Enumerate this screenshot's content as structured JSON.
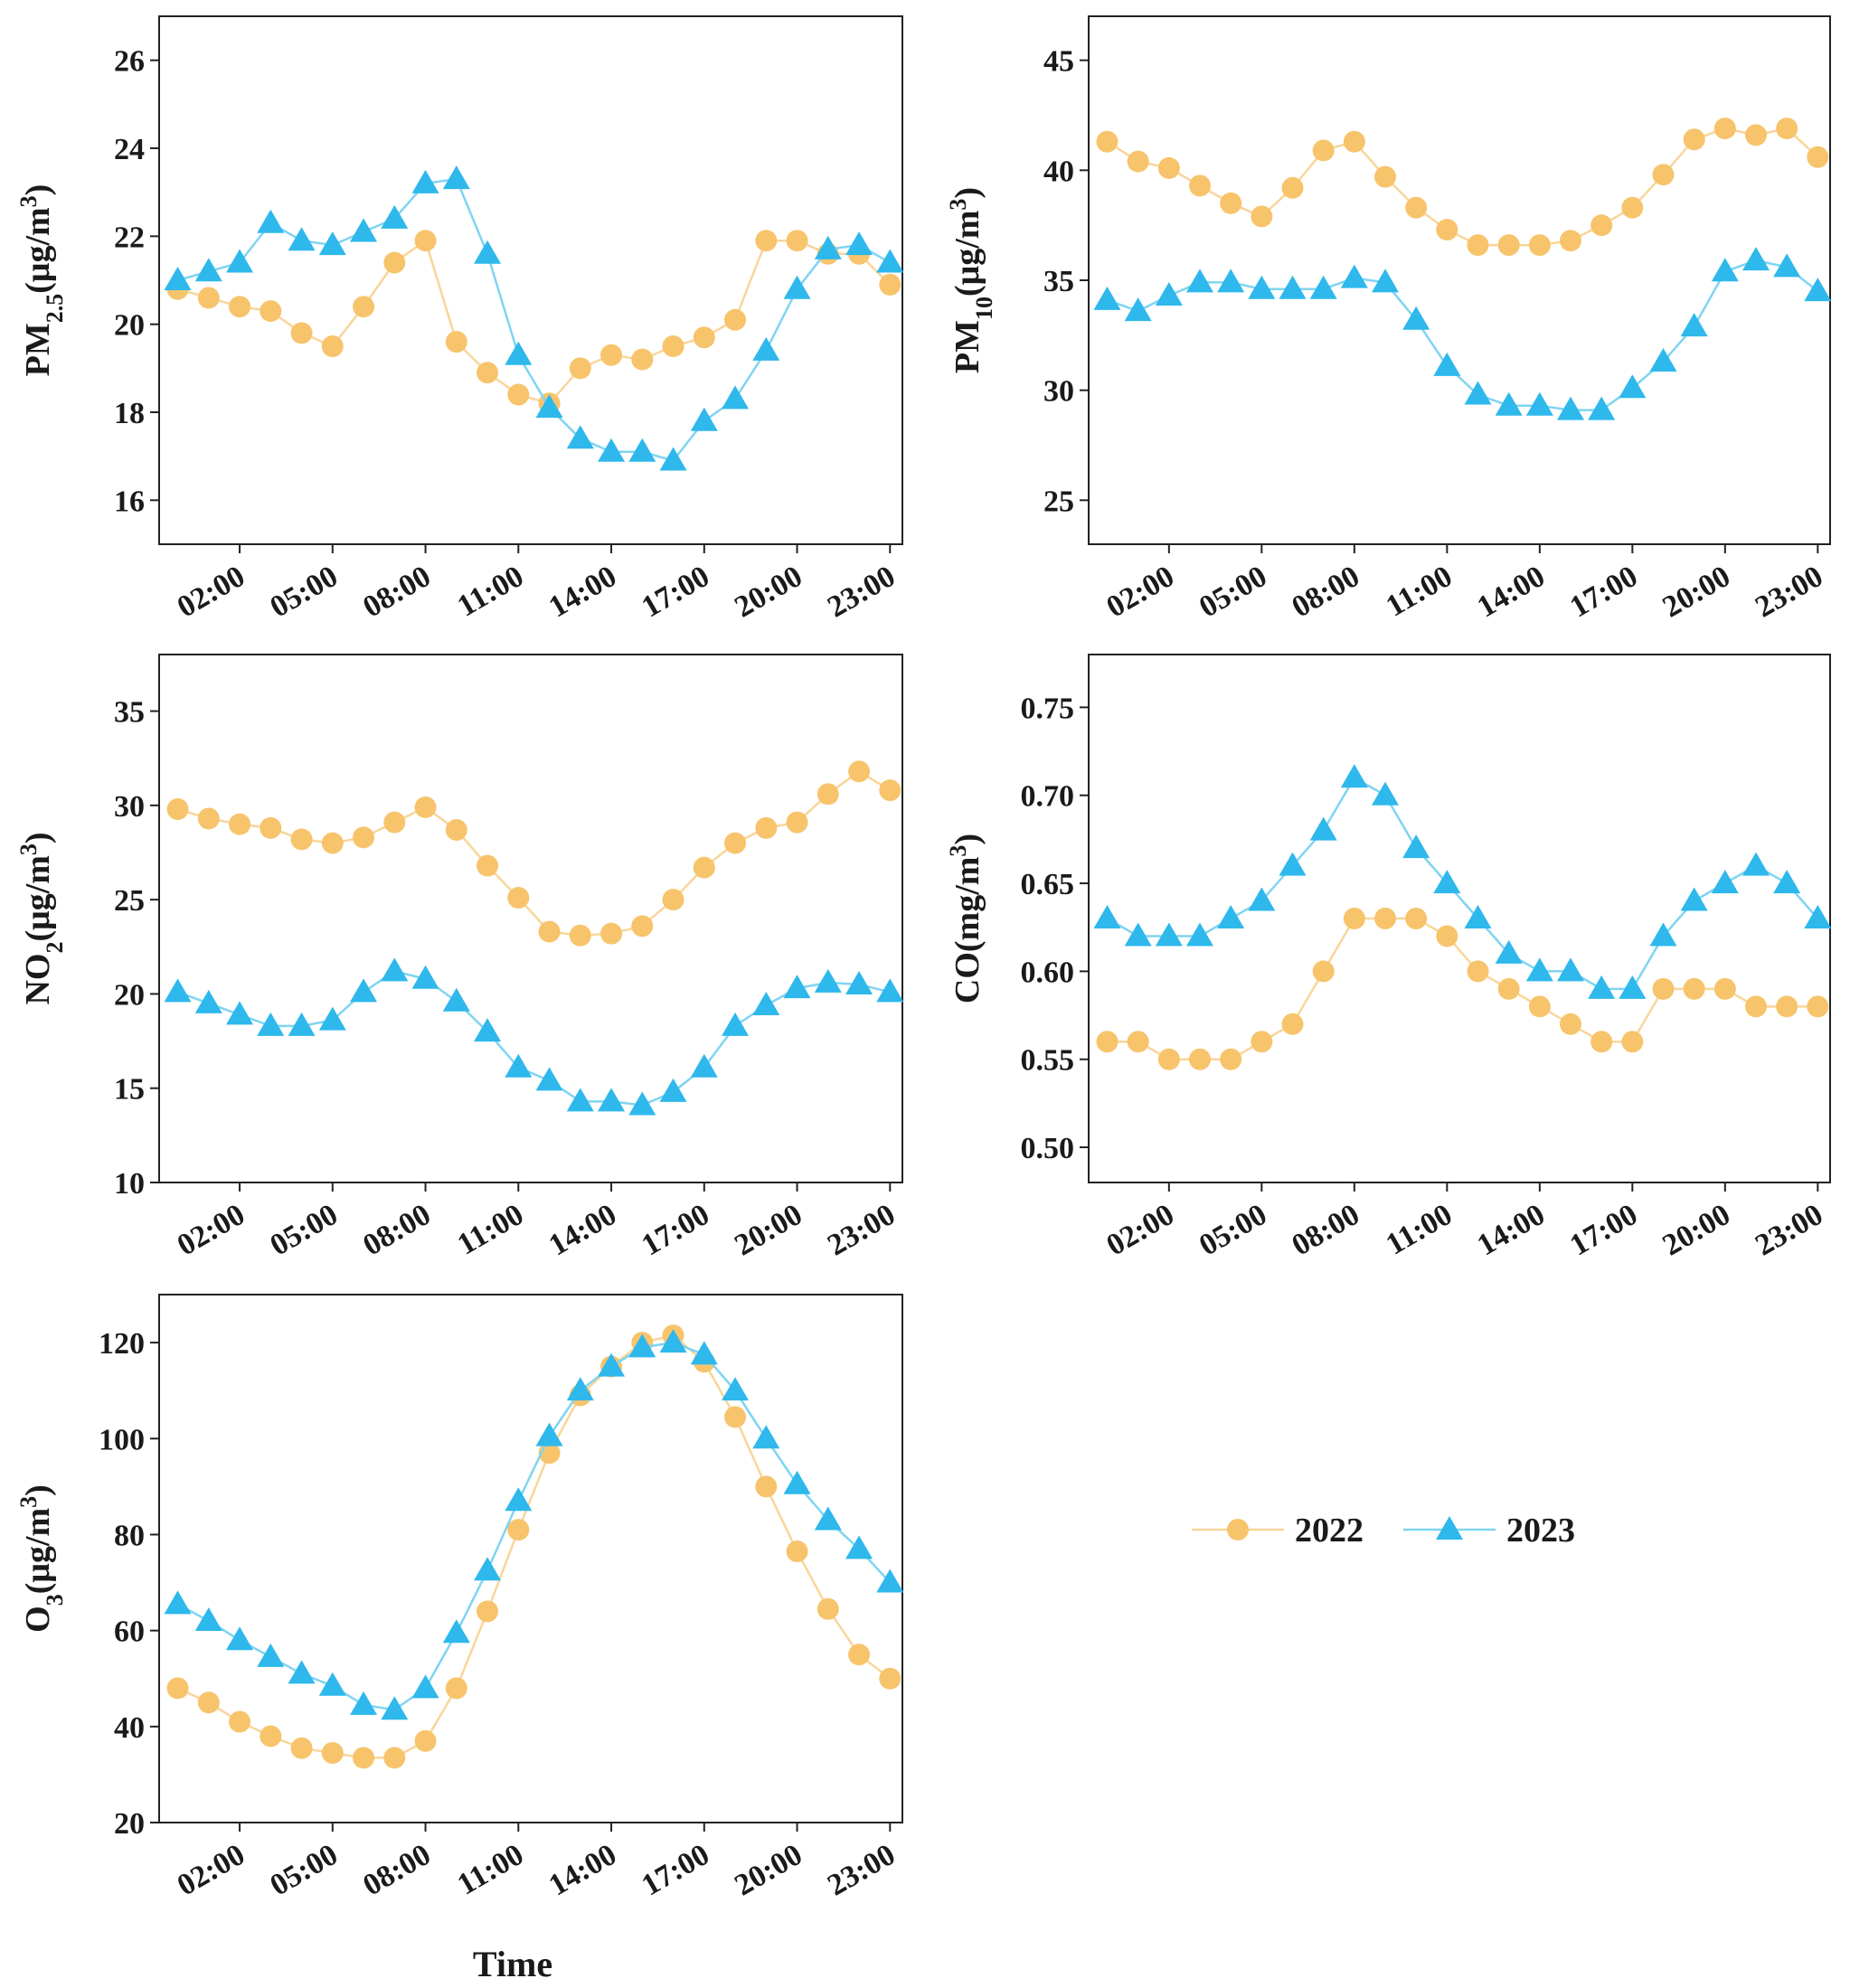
{
  "colors": {
    "s2022": "#F7C46C",
    "s2023": "#2EB8EC",
    "line2022": "#F9D59A",
    "line2023": "#7FD4F2",
    "axis": "#222222"
  },
  "legend": {
    "items": [
      {
        "label": "2022",
        "marker": "circle"
      },
      {
        "label": "2023",
        "marker": "triangle"
      }
    ]
  },
  "chart_data": [
    {
      "id": "pm25",
      "type": "line",
      "ylabel_main": "PM",
      "ylabel_sub": "2.5",
      "ylabel_unit": "(μg/m",
      "ylabel_sup": "3",
      "ylabel_close": ")",
      "xlabel": "",
      "ylim": [
        15,
        27
      ],
      "yticks": [
        16,
        18,
        20,
        22,
        24,
        26
      ],
      "x": [
        0,
        1,
        2,
        3,
        4,
        5,
        6,
        7,
        8,
        9,
        10,
        11,
        12,
        13,
        14,
        15,
        16,
        17,
        18,
        19,
        20,
        21,
        22,
        23
      ],
      "xticks": [
        2,
        5,
        8,
        11,
        14,
        17,
        20,
        23
      ],
      "xtick_labels": [
        "02:00",
        "05:00",
        "08:00",
        "11:00",
        "14:00",
        "17:00",
        "20:00",
        "23:00"
      ],
      "series": [
        {
          "name": "2022",
          "values": [
            20.8,
            20.6,
            20.4,
            20.3,
            19.8,
            19.5,
            20.4,
            21.4,
            21.9,
            19.6,
            18.9,
            18.4,
            18.2,
            19.0,
            19.3,
            19.2,
            19.5,
            19.7,
            20.1,
            21.9,
            21.9,
            21.6,
            21.6,
            20.9
          ]
        },
        {
          "name": "2023",
          "values": [
            21.0,
            21.2,
            21.4,
            22.3,
            21.9,
            21.8,
            22.1,
            22.4,
            23.2,
            23.3,
            21.6,
            19.3,
            18.1,
            17.4,
            17.1,
            17.1,
            16.9,
            17.8,
            18.3,
            19.4,
            20.8,
            21.7,
            21.8,
            21.4
          ]
        }
      ]
    },
    {
      "id": "pm10",
      "type": "line",
      "ylabel_main": "PM",
      "ylabel_sub": "10",
      "ylabel_unit": "(μg/m",
      "ylabel_sup": "3",
      "ylabel_close": ")",
      "xlabel": "",
      "ylim": [
        23,
        47
      ],
      "yticks": [
        25,
        30,
        35,
        40,
        45
      ],
      "x": [
        0,
        1,
        2,
        3,
        4,
        5,
        6,
        7,
        8,
        9,
        10,
        11,
        12,
        13,
        14,
        15,
        16,
        17,
        18,
        19,
        20,
        21,
        22,
        23
      ],
      "xticks": [
        2,
        5,
        8,
        11,
        14,
        17,
        20,
        23
      ],
      "xtick_labels": [
        "02:00",
        "05:00",
        "08:00",
        "11:00",
        "14:00",
        "17:00",
        "20:00",
        "23:00"
      ],
      "series": [
        {
          "name": "2022",
          "values": [
            41.3,
            40.4,
            40.1,
            39.3,
            38.5,
            37.9,
            39.2,
            40.9,
            41.3,
            39.7,
            38.3,
            37.3,
            36.6,
            36.6,
            36.6,
            36.8,
            37.5,
            38.3,
            39.8,
            41.4,
            41.9,
            41.6,
            41.9,
            40.6
          ]
        },
        {
          "name": "2023",
          "values": [
            34.1,
            33.6,
            34.3,
            34.9,
            34.9,
            34.6,
            34.6,
            34.6,
            35.1,
            34.9,
            33.2,
            31.1,
            29.8,
            29.3,
            29.3,
            29.1,
            29.1,
            30.1,
            31.3,
            32.9,
            35.4,
            35.9,
            35.6,
            34.5
          ]
        }
      ]
    },
    {
      "id": "no2",
      "type": "line",
      "ylabel_main": "NO",
      "ylabel_sub": "2",
      "ylabel_unit": "(μg/m",
      "ylabel_sup": "3",
      "ylabel_close": ")",
      "xlabel": "",
      "ylim": [
        10,
        38
      ],
      "yticks": [
        10,
        15,
        20,
        25,
        30,
        35
      ],
      "x": [
        0,
        1,
        2,
        3,
        4,
        5,
        6,
        7,
        8,
        9,
        10,
        11,
        12,
        13,
        14,
        15,
        16,
        17,
        18,
        19,
        20,
        21,
        22,
        23
      ],
      "xticks": [
        2,
        5,
        8,
        11,
        14,
        17,
        20,
        23
      ],
      "xtick_labels": [
        "02:00",
        "05:00",
        "08:00",
        "11:00",
        "14:00",
        "17:00",
        "20:00",
        "23:00"
      ],
      "series": [
        {
          "name": "2022",
          "values": [
            29.8,
            29.3,
            29.0,
            28.8,
            28.2,
            28.0,
            28.3,
            29.1,
            29.9,
            28.7,
            26.8,
            25.1,
            23.3,
            23.1,
            23.2,
            23.6,
            25.0,
            26.7,
            28.0,
            28.8,
            29.1,
            30.6,
            31.8,
            30.8
          ]
        },
        {
          "name": "2023",
          "values": [
            20.1,
            19.5,
            18.9,
            18.3,
            18.3,
            18.6,
            20.1,
            21.2,
            20.8,
            19.6,
            18.0,
            16.1,
            15.4,
            14.3,
            14.3,
            14.1,
            14.8,
            16.1,
            18.3,
            19.4,
            20.3,
            20.6,
            20.5,
            20.1
          ]
        }
      ]
    },
    {
      "id": "co",
      "type": "line",
      "ylabel_main": "CO",
      "ylabel_sub": "",
      "ylabel_unit": "(mg/m",
      "ylabel_sup": "3",
      "ylabel_close": ")",
      "xlabel": "",
      "ylim": [
        0.48,
        0.78
      ],
      "yticks": [
        0.5,
        0.55,
        0.6,
        0.65,
        0.7,
        0.75
      ],
      "ytick_labels": [
        "0.50",
        "0.55",
        "0.60",
        "0.65",
        "0.70",
        "0.75"
      ],
      "x": [
        0,
        1,
        2,
        3,
        4,
        5,
        6,
        7,
        8,
        9,
        10,
        11,
        12,
        13,
        14,
        15,
        16,
        17,
        18,
        19,
        20,
        21,
        22,
        23
      ],
      "xticks": [
        2,
        5,
        8,
        11,
        14,
        17,
        20,
        23
      ],
      "xtick_labels": [
        "02:00",
        "05:00",
        "08:00",
        "11:00",
        "14:00",
        "17:00",
        "20:00",
        "23:00"
      ],
      "series": [
        {
          "name": "2022",
          "values": [
            0.56,
            0.56,
            0.55,
            0.55,
            0.55,
            0.56,
            0.57,
            0.6,
            0.63,
            0.63,
            0.63,
            0.62,
            0.6,
            0.59,
            0.58,
            0.57,
            0.56,
            0.56,
            0.59,
            0.59,
            0.59,
            0.58,
            0.58,
            0.58
          ]
        },
        {
          "name": "2023",
          "values": [
            0.63,
            0.62,
            0.62,
            0.62,
            0.63,
            0.64,
            0.66,
            0.68,
            0.71,
            0.7,
            0.67,
            0.65,
            0.63,
            0.61,
            0.6,
            0.6,
            0.59,
            0.59,
            0.62,
            0.64,
            0.65,
            0.66,
            0.65,
            0.63
          ]
        }
      ]
    },
    {
      "id": "o3",
      "type": "line",
      "ylabel_main": "O",
      "ylabel_sub": "3",
      "ylabel_unit": "(μg/m",
      "ylabel_sup": "3",
      "ylabel_close": ")",
      "xlabel": "Time",
      "ylim": [
        20,
        130
      ],
      "yticks": [
        20,
        40,
        60,
        80,
        100,
        120
      ],
      "x": [
        0,
        1,
        2,
        3,
        4,
        5,
        6,
        7,
        8,
        9,
        10,
        11,
        12,
        13,
        14,
        15,
        16,
        17,
        18,
        19,
        20,
        21,
        22,
        23
      ],
      "xticks": [
        2,
        5,
        8,
        11,
        14,
        17,
        20,
        23
      ],
      "xtick_labels": [
        "02:00",
        "05:00",
        "08:00",
        "11:00",
        "14:00",
        "17:00",
        "20:00",
        "23:00"
      ],
      "series": [
        {
          "name": "2022",
          "values": [
            48,
            45,
            41,
            38,
            35.5,
            34.5,
            33.5,
            33.5,
            37,
            48,
            64,
            81,
            97,
            109,
            115,
            120,
            121.5,
            116,
            104.5,
            90,
            76.5,
            64.5,
            55,
            50
          ]
        },
        {
          "name": "2023",
          "values": [
            65.5,
            62,
            58,
            54.5,
            51,
            48.5,
            44.5,
            43.5,
            48,
            59.5,
            72.5,
            87,
            100.5,
            110,
            115,
            119,
            120,
            117.5,
            110,
            100,
            90.5,
            83,
            77,
            70
          ]
        }
      ]
    }
  ]
}
